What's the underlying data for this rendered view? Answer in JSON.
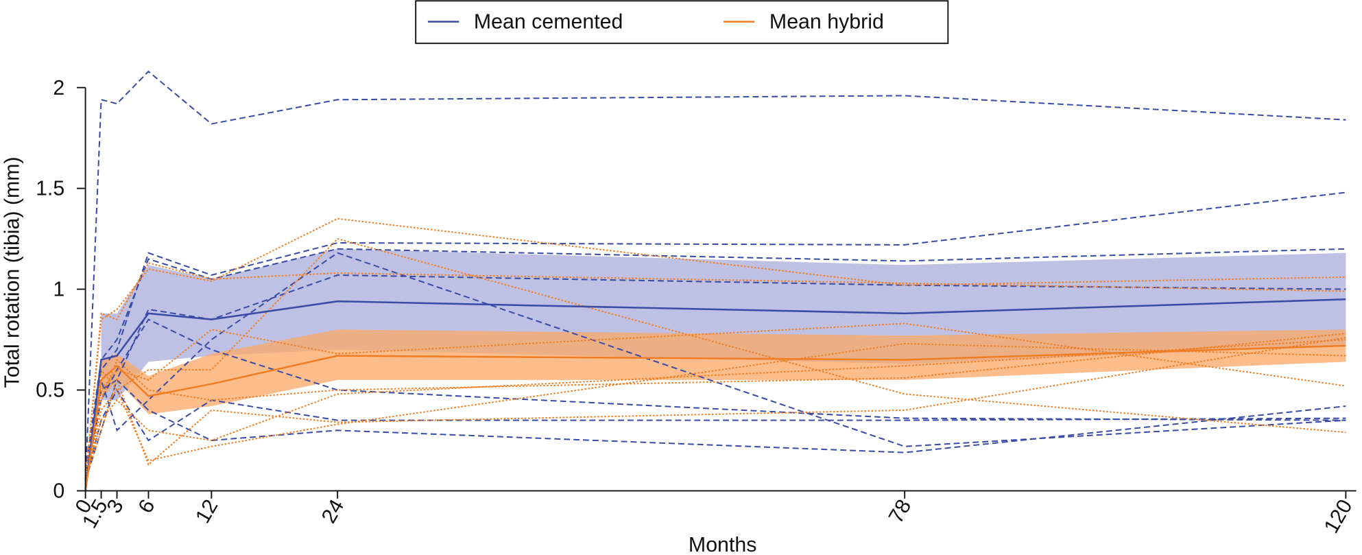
{
  "chart_data": {
    "type": "line",
    "x_label": "Months",
    "y_label": "Total rotation (tibia) (mm)",
    "x": [
      0,
      1.5,
      3,
      6,
      12,
      24,
      78,
      120
    ],
    "xlim": [
      0,
      121
    ],
    "xticks": [
      0,
      1.5,
      3,
      6,
      12,
      24,
      78,
      120
    ],
    "ylim": [
      0,
      2
    ],
    "yticks": [
      0,
      0.5,
      1,
      1.5,
      2
    ],
    "bands": [
      {
        "color": "#a9acdb",
        "lower": [
          null,
          0.45,
          0.45,
          0.64,
          0.67,
          0.7,
          0.63,
          0.72
        ],
        "upper": [
          null,
          0.88,
          0.88,
          1.12,
          1.05,
          1.2,
          1.12,
          1.18
        ]
      },
      {
        "color": "#f9a766",
        "lower": [
          null,
          0.45,
          0.55,
          0.38,
          0.42,
          0.55,
          0.55,
          0.64
        ],
        "upper": [
          null,
          0.65,
          0.68,
          0.57,
          0.68,
          0.8,
          0.77,
          0.8
        ]
      }
    ],
    "individual_lines": [
      {
        "color": "#3a4ba6",
        "dash": "dashed",
        "values": [
          0.05,
          1.94,
          1.92,
          2.08,
          1.82,
          1.94,
          1.96,
          1.84
        ]
      },
      {
        "color": "#3a4ba6",
        "dash": "dashed",
        "values": [
          0.1,
          0.6,
          0.7,
          1.18,
          1.07,
          1.23,
          1.22,
          1.48
        ]
      },
      {
        "color": "#3a4ba6",
        "dash": "dashed",
        "values": [
          0.1,
          0.65,
          0.75,
          1.15,
          1.05,
          1.2,
          1.14,
          1.2
        ]
      },
      {
        "color": "#3a4ba6",
        "dash": "dashed",
        "values": [
          0.05,
          0.5,
          0.55,
          0.9,
          0.85,
          1.07,
          1.02,
          1.0
        ]
      },
      {
        "color": "#3a4ba6",
        "dash": "dashed",
        "values": [
          0.05,
          0.45,
          0.6,
          0.85,
          0.7,
          0.5,
          0.36,
          0.35
        ]
      },
      {
        "color": "#3a4ba6",
        "dash": "dashed",
        "values": [
          0.05,
          0.35,
          0.5,
          0.25,
          0.45,
          0.35,
          0.35,
          0.36
        ]
      },
      {
        "color": "#3a4ba6",
        "dash": "dashed",
        "values": [
          0.05,
          0.3,
          0.55,
          0.4,
          0.25,
          0.3,
          0.19,
          0.42
        ]
      },
      {
        "color": "#3a4ba6",
        "dash": "dashed",
        "values": [
          0.05,
          0.55,
          0.3,
          0.45,
          0.75,
          1.18,
          0.22,
          0.35
        ]
      },
      {
        "color": "#f07d21",
        "dash": "dotted",
        "values": [
          0.05,
          0.88,
          0.85,
          1.13,
          1.05,
          1.08,
          1.03,
          0.99
        ]
      },
      {
        "color": "#f07d21",
        "dash": "dotted",
        "values": [
          0.05,
          0.85,
          0.9,
          1.1,
          1.04,
          1.35,
          1.02,
          1.06
        ]
      },
      {
        "color": "#f07d21",
        "dash": "dotted",
        "values": [
          0.05,
          0.5,
          0.6,
          0.55,
          0.8,
          0.68,
          0.83,
          0.52
        ]
      },
      {
        "color": "#f07d21",
        "dash": "dotted",
        "values": [
          0.05,
          0.45,
          0.65,
          0.5,
          0.45,
          0.5,
          0.56,
          0.78
        ]
      },
      {
        "color": "#f07d21",
        "dash": "dotted",
        "values": [
          0.05,
          0.3,
          0.55,
          0.13,
          0.4,
          0.34,
          0.4,
          0.76
        ]
      },
      {
        "color": "#f07d21",
        "dash": "dotted",
        "values": [
          0.05,
          0.4,
          0.5,
          0.15,
          0.22,
          0.33,
          0.73,
          0.67
        ]
      },
      {
        "color": "#f07d21",
        "dash": "dotted",
        "values": [
          0.05,
          0.6,
          0.5,
          0.6,
          0.6,
          1.25,
          0.48,
          0.29
        ]
      },
      {
        "color": "#f07d21",
        "dash": "dotted",
        "values": [
          0.05,
          0.35,
          0.45,
          0.3,
          0.25,
          0.48,
          0.62,
          0.75
        ]
      }
    ],
    "series": [
      {
        "name": "Mean cemented",
        "color": "#3a4ba6",
        "values": [
          0.0,
          0.65,
          0.67,
          0.88,
          0.85,
          0.94,
          0.88,
          0.95
        ]
      },
      {
        "name": "Mean hybrid",
        "color": "#f07d21",
        "values": [
          0.0,
          0.55,
          0.62,
          0.47,
          0.53,
          0.67,
          0.65,
          0.72
        ]
      }
    ]
  }
}
